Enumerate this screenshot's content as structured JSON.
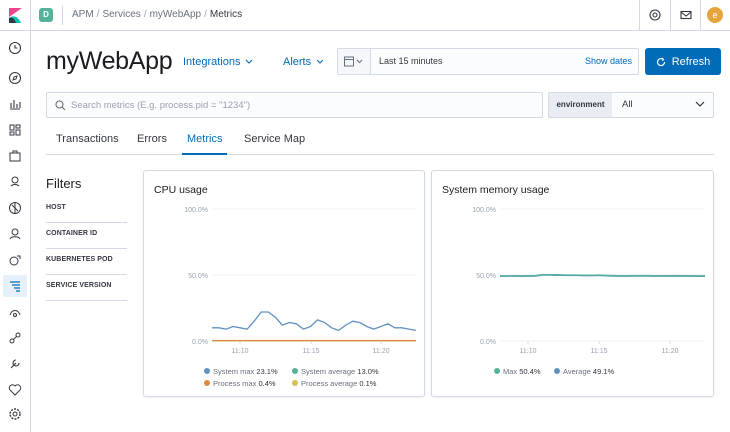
{
  "header": {
    "space_initial": "D",
    "breadcrumbs": [
      "APM",
      "Services",
      "myWebApp",
      "Metrics"
    ],
    "avatar_initial": "e"
  },
  "page": {
    "title": "myWebApp",
    "integrations_label": "Integrations",
    "alerts_label": "Alerts"
  },
  "datepicker": {
    "range": "Last 15 minutes",
    "show_dates": "Show dates"
  },
  "refresh_label": "Refresh",
  "search": {
    "placeholder": "Search metrics (E.g. process.pid = \"1234\")",
    "value": ""
  },
  "environment": {
    "label": "environment",
    "value": "All"
  },
  "tabs": [
    {
      "label": "Transactions",
      "active": false
    },
    {
      "label": "Errors",
      "active": false
    },
    {
      "label": "Metrics",
      "active": true
    },
    {
      "label": "Service Map",
      "active": false
    }
  ],
  "filters": {
    "title": "Filters",
    "items": [
      "HOST",
      "CONTAINER ID",
      "KUBERNETES POD",
      "SERVICE VERSION"
    ]
  },
  "icons": {
    "nav": [
      "clock-icon",
      "compass-icon",
      "visualize-icon",
      "dashboard-icon",
      "canvas-icon",
      "maps-icon",
      "ml-icon",
      "infra-icon",
      "logs-icon",
      "apm-icon",
      "uptime-icon",
      "graph-icon",
      "dev-tools-icon",
      "monitoring-icon",
      "management-icon"
    ]
  },
  "colors": {
    "primary": "#006bb8",
    "series_blue": "#6092c0",
    "series_green": "#54b399",
    "series_orange": "#da8b45",
    "series_yellow": "#d6bf57"
  },
  "chart_data": [
    {
      "type": "line",
      "title": "CPU usage",
      "yticks": [
        "100.0%",
        "50.0%",
        "0.0%"
      ],
      "ylim": [
        0,
        100
      ],
      "xticks": [
        "11:10",
        "11:15",
        "11:20"
      ],
      "x": [
        0,
        1,
        2,
        3,
        4,
        5,
        6,
        7,
        8,
        9,
        10,
        11,
        12,
        13,
        14,
        15,
        16,
        17,
        18,
        19,
        20,
        21,
        22,
        23,
        24,
        25,
        26,
        27,
        28,
        29
      ],
      "series": [
        {
          "name": "System max",
          "summary": "23.1%",
          "color": "#6092c0",
          "values": [
            10,
            10,
            9,
            11,
            10,
            9,
            15,
            22,
            22,
            18,
            12,
            14,
            13,
            9,
            11,
            16,
            14,
            10,
            8,
            12,
            15,
            14,
            11,
            9,
            11,
            13,
            10,
            10,
            9,
            8
          ]
        },
        {
          "name": "System average",
          "summary": "13.0%",
          "color": "#54b399",
          "values": [
            null,
            null,
            null,
            null,
            null,
            null,
            null,
            null,
            null,
            null,
            null,
            null,
            null,
            null,
            null,
            null,
            null,
            null,
            null,
            null,
            null,
            null,
            null,
            null,
            null,
            null,
            null,
            null,
            null,
            null
          ]
        },
        {
          "name": "Process max",
          "summary": "0.4%",
          "color": "#da8b45",
          "values": [
            0.4,
            0.4,
            0.4,
            0.4,
            0.4,
            0.4,
            0.4,
            0.4,
            0.4,
            0.4,
            0.4,
            0.4,
            0.4,
            0.4,
            0.4,
            0.4,
            0.4,
            0.4,
            0.4,
            0.4,
            0.4,
            0.4,
            0.4,
            0.4,
            0.4,
            0.4,
            0.4,
            0.4,
            0.4,
            0.4
          ]
        },
        {
          "name": "Process average",
          "summary": "0.1%",
          "color": "#d6bf57",
          "values": [
            0.1,
            0.1,
            0.1,
            0.1,
            0.1,
            0.1,
            0.1,
            0.1,
            0.1,
            0.1,
            0.1,
            0.1,
            0.1,
            0.1,
            0.1,
            0.1,
            0.1,
            0.1,
            0.1,
            0.1,
            0.1,
            0.1,
            0.1,
            0.1,
            0.1,
            0.1,
            0.1,
            0.1,
            0.1,
            0.1
          ]
        }
      ]
    },
    {
      "type": "line",
      "title": "System memory usage",
      "yticks": [
        "100.0%",
        "50.0%",
        "0.0%"
      ],
      "ylim": [
        0,
        100
      ],
      "xticks": [
        "11:10",
        "11:15",
        "11:20"
      ],
      "x": [
        0,
        1,
        2,
        3,
        4,
        5,
        6,
        7,
        8,
        9,
        10,
        11,
        12,
        13,
        14,
        15,
        16,
        17,
        18,
        19,
        20,
        21,
        22,
        23,
        24,
        25,
        26,
        27,
        28,
        29
      ],
      "series": [
        {
          "name": "Max",
          "summary": "50.4%",
          "color": "#54b399",
          "values": [
            49.4,
            49.4,
            49.5,
            49.4,
            49.5,
            49.6,
            50.4,
            50.3,
            50.2,
            50.1,
            50.0,
            50.0,
            49.9,
            49.9,
            50.0,
            49.8,
            49.6,
            49.5,
            49.5,
            49.6,
            49.6,
            49.6,
            49.5,
            49.5,
            49.5,
            49.6,
            49.5,
            49.5,
            49.4,
            49.4
          ]
        },
        {
          "name": "Average",
          "summary": "49.1%",
          "color": "#6092c0",
          "values": [
            49.0,
            49.0,
            49.1,
            49.0,
            49.1,
            49.2,
            49.9,
            49.9,
            49.8,
            49.7,
            49.6,
            49.6,
            49.5,
            49.5,
            49.6,
            49.4,
            49.2,
            49.1,
            49.1,
            49.2,
            49.2,
            49.2,
            49.1,
            49.1,
            49.1,
            49.2,
            49.1,
            49.1,
            49.0,
            49.0
          ]
        }
      ]
    }
  ]
}
